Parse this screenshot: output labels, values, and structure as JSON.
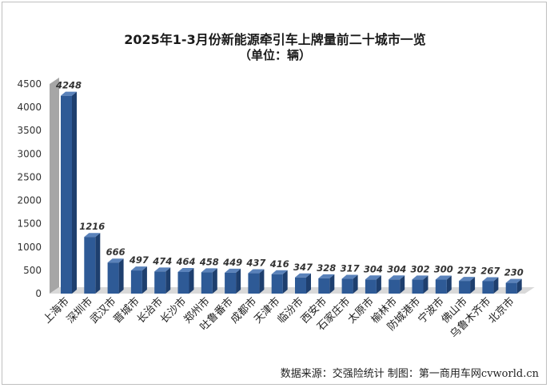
{
  "chart_data": {
    "type": "bar",
    "title": "2025年1-3月份新能源牵引车上牌量前二十城市一览",
    "subtitle": "（单位：辆）",
    "categories": [
      "上海市",
      "深圳市",
      "武汉市",
      "晋城市",
      "长治市",
      "长沙市",
      "郑州市",
      "吐鲁番市",
      "成都市",
      "天津市",
      "临汾市",
      "西安市",
      "石家庄市",
      "太原市",
      "榆林市",
      "防城港市",
      "宁波市",
      "佛山市",
      "乌鲁木齐市",
      "北京市"
    ],
    "values": [
      4248,
      1216,
      666,
      497,
      474,
      464,
      458,
      449,
      437,
      416,
      347,
      328,
      317,
      304,
      304,
      302,
      300,
      273,
      267,
      230
    ],
    "ylim": [
      0,
      4500
    ],
    "yticks": [
      0,
      500,
      1000,
      1500,
      2000,
      2500,
      3000,
      3500,
      4000,
      4500
    ],
    "xlabel": "",
    "ylabel": "",
    "grid": false,
    "legend": "none",
    "colors": {
      "bar_front": "#2e5a96",
      "bar_side": "#1e3f6e",
      "bar_top": "#5a82ba",
      "wall": "#a6a6a6",
      "floor": "#d9d9d9"
    }
  },
  "footer": "数据来源：交强险统计  制图：第一商用车网cvworld.cn"
}
